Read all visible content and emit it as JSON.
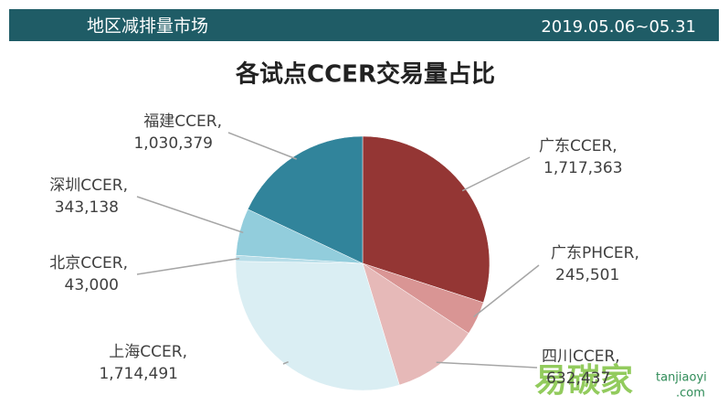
{
  "header": {
    "title": "地区减排量市场",
    "date_range": "2019.05.06~05.31"
  },
  "chart_data": {
    "type": "pie",
    "title": "各试点CCER交易量占比",
    "categories": [
      "广东CCER,",
      "广东PHCER,",
      "四川CCER,",
      "上海CCER,",
      "北京CCER,",
      "深圳CCER,",
      "福建CCER,"
    ],
    "values": [
      1717363,
      245501,
      632437,
      1714491,
      43000,
      343138,
      1030379
    ],
    "value_labels": [
      "1,717,363",
      "245,501",
      "632,437",
      "1,714,491",
      "43,000",
      "343,138",
      "1,030,379"
    ],
    "colors": [
      "#943634",
      "#d99594",
      "#e6b9b8",
      "#daeef3",
      "#b7dde8",
      "#92cddc",
      "#31849b"
    ]
  },
  "watermark": {
    "brand": "易碳家",
    "site": "tanjiaoyi",
    "domain": ".com"
  }
}
